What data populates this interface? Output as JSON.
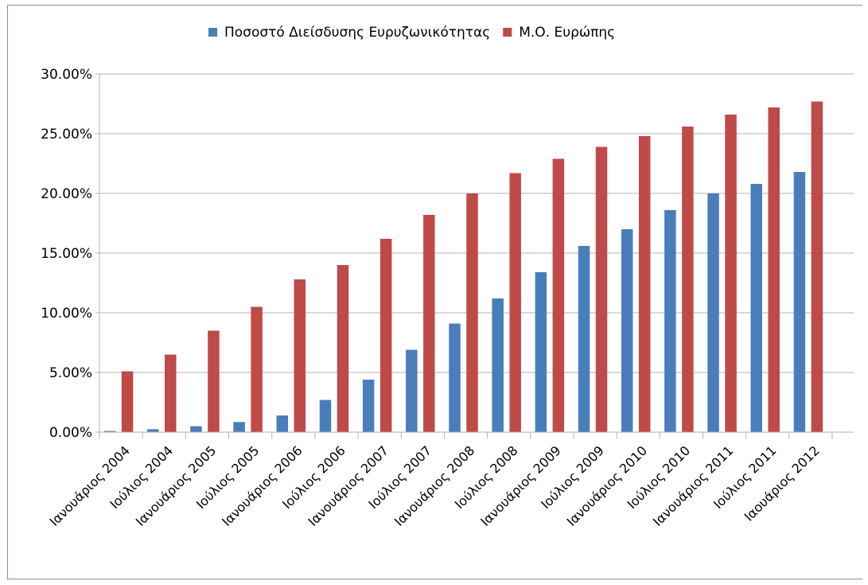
{
  "chart_data": {
    "type": "bar",
    "categories": [
      "Ιανουάριος 2004",
      "Ιούλιος 2004",
      "Ιανουάριος 2005",
      "Ιούλιος 2005",
      "Ιανουάριος 2006",
      "Ιούλιος 2006",
      "Ιανουάριος 2007",
      "Ιούλιος 2007",
      "Ιανουάριος 2008",
      "Ιούλιος 2008",
      "Ιανουάριος 2009",
      "Ιούλιος 2009",
      "Ιανουάριος 2010",
      "Ιούλιος 2010",
      "Ιανουάριος 2011",
      "Ιούλιος 2011",
      "Ιαουάριος 2012"
    ],
    "series": [
      {
        "name": "Ποσοστό Διείσδυσης Ευρυζωνικότητας",
        "color": "#4a7ebb",
        "values": [
          0.1,
          0.25,
          0.5,
          0.85,
          1.4,
          2.7,
          4.4,
          6.9,
          9.1,
          11.2,
          13.4,
          15.6,
          17.0,
          18.6,
          20.0,
          20.8,
          21.8
        ]
      },
      {
        "name": "Μ.Ο. Ευρώπης",
        "color": "#be4b48",
        "values": [
          5.1,
          6.5,
          8.5,
          10.5,
          12.8,
          14.0,
          16.2,
          18.2,
          20.0,
          21.7,
          22.9,
          23.9,
          24.8,
          25.6,
          26.6,
          27.2,
          27.7
        ]
      }
    ],
    "yticks": [
      "0.00%",
      "5.00%",
      "10.00%",
      "15.00%",
      "20.00%",
      "25.00%",
      "30.00%"
    ],
    "ylim": [
      0,
      30
    ],
    "ystep": 5,
    "grid": true,
    "legend_position": "top",
    "title": "",
    "xlabel": "",
    "ylabel": ""
  }
}
